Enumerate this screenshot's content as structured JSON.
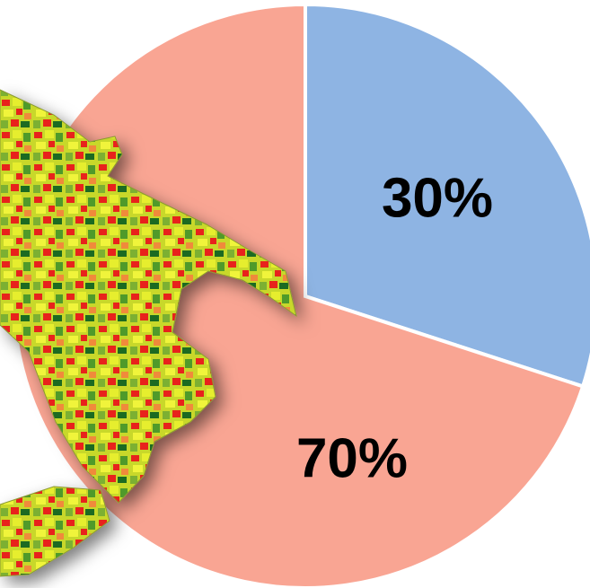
{
  "chart_data": {
    "type": "pie",
    "categories": [
      null,
      null
    ],
    "values": [
      30,
      70
    ],
    "value_labels": [
      "30%",
      "70%"
    ],
    "colors": [
      "#8eb4e3",
      "#f9a593"
    ]
  }
}
